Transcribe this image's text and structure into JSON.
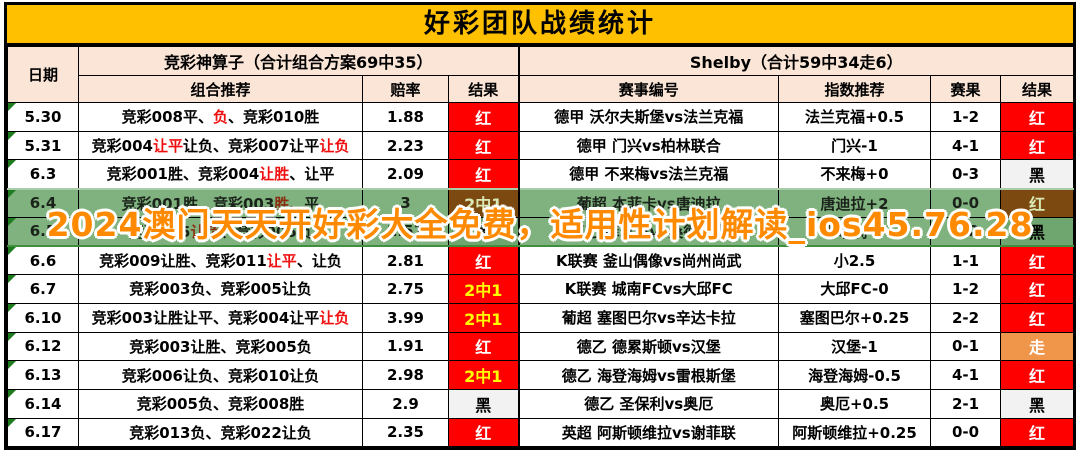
{
  "title": "好彩团队战绩统计",
  "watermark": "2024澳门天天开好彩大全免费，适用性计划解读_ios45.76.28",
  "colors": {
    "gold": "#FFC000",
    "header-bg": "#FBE5D6",
    "red": "#FE0000",
    "hit-text": "#FFFF00",
    "black-bg": "#F2F2F2",
    "walk": "#F0964B",
    "hl-green": "#7FB27E",
    "hl-brown": "#7C4A10",
    "watermark": "#FF8A00",
    "seg-red": "#F01010",
    "triangle": "#1E7B1E"
  },
  "table": {
    "date_header": "日期",
    "group_left": "竞彩神算子（合计组合方案69中35）",
    "group_right": "Shelby（合计59中34走6）",
    "columns_left": [
      "组合推荐",
      "赔率",
      "结果"
    ],
    "columns_right": [
      "赛事编号",
      "指数推荐",
      "赛果",
      "结果"
    ],
    "rows": [
      {
        "date": "5.30",
        "combo": [
          {
            "text": "竞彩008平、",
            "red": false
          },
          {
            "text": "负",
            "red": true
          },
          {
            "text": "、竞彩010胜",
            "red": false
          }
        ],
        "odds": "1.88",
        "result_left": {
          "text": "红",
          "style": "red"
        },
        "match": "德甲 沃尔夫斯堡vs法兰克福",
        "index_pick": "法兰克福+0.5",
        "score": "1-2",
        "result_right": {
          "text": "红",
          "style": "red"
        },
        "highlight": false
      },
      {
        "date": "5.31",
        "combo": [
          {
            "text": "竞彩004",
            "red": false
          },
          {
            "text": "让平",
            "red": true
          },
          {
            "text": "让负、竞彩007让平",
            "red": false
          },
          {
            "text": "让负",
            "red": true
          }
        ],
        "odds": "2.23",
        "result_left": {
          "text": "红",
          "style": "red"
        },
        "match": "德甲 门兴vs柏林联合",
        "index_pick": "门兴-1",
        "score": "4-1",
        "result_right": {
          "text": "红",
          "style": "red"
        },
        "highlight": false
      },
      {
        "date": "6.3",
        "combo": [
          {
            "text": "竞彩001胜、竞彩004",
            "red": false
          },
          {
            "text": "让胜",
            "red": true
          },
          {
            "text": "、让平",
            "red": false
          }
        ],
        "odds": "2.09",
        "result_left": {
          "text": "红",
          "style": "red"
        },
        "match": "德甲 不来梅vs法兰克福",
        "index_pick": "不来梅+0",
        "score": "0-3",
        "result_right": {
          "text": "黑",
          "style": "black"
        },
        "highlight": false
      },
      {
        "date": "6.4",
        "combo": [
          {
            "text": "竞彩001胜、竞彩003",
            "red": false
          },
          {
            "text": "胜",
            "red": true
          },
          {
            "text": "、平",
            "red": false
          }
        ],
        "odds": "3",
        "result_left": {
          "text": "2中1",
          "style": "hit"
        },
        "match": "葡超 本菲卡vs唐迪拉",
        "index_pick": "唐迪拉+2",
        "score": "0-0",
        "result_right": {
          "text": "红",
          "style": "red"
        },
        "highlight": true
      },
      {
        "date": "6.5",
        "combo": [
          {
            "text": "竞彩005",
            "red": false
          },
          {
            "text": "让负",
            "red": true
          },
          {
            "text": "、竞彩005负",
            "red": false
          }
        ],
        "odds": "2.51",
        "result_left": {
          "text": "黑",
          "style": "black"
        },
        "match": "德乙 菲尔特vs桑德豪森",
        "index_pick": "菲尔特-0",
        "score": "1-2",
        "result_right": {
          "text": "黑",
          "style": "black"
        },
        "highlight": true
      },
      {
        "date": "6.6",
        "combo": [
          {
            "text": "竞彩009让胜、竞彩011",
            "red": false
          },
          {
            "text": "让平",
            "red": true
          },
          {
            "text": "、让负",
            "red": false
          }
        ],
        "odds": "2.81",
        "result_left": {
          "text": "红",
          "style": "red"
        },
        "match": "K联赛 釜山偶像vs尚州尚武",
        "index_pick": "小2.5",
        "score": "1-1",
        "result_right": {
          "text": "红",
          "style": "red"
        },
        "highlight": false
      },
      {
        "date": "6.7",
        "combo": [
          {
            "text": "竞彩003负、竞彩005让负",
            "red": false
          }
        ],
        "odds": "2.75",
        "result_left": {
          "text": "2中1",
          "style": "hit"
        },
        "match": "K联赛 城南FCvs大邱FC",
        "index_pick": "大邱FC-0",
        "score": "1-2",
        "result_right": {
          "text": "红",
          "style": "red"
        },
        "highlight": false
      },
      {
        "date": "6.10",
        "combo": [
          {
            "text": "竞彩003让胜让平、竞彩004让平",
            "red": false
          },
          {
            "text": "让负",
            "red": true
          }
        ],
        "odds": "3.99",
        "result_left": {
          "text": "2中1",
          "style": "hit"
        },
        "match": "葡超 塞图巴尔vs辛达卡拉",
        "index_pick": "塞图巴尔+0.25",
        "score": "2-2",
        "result_right": {
          "text": "红",
          "style": "red"
        },
        "highlight": false
      },
      {
        "date": "6.12",
        "combo": [
          {
            "text": "竞彩003让胜、竞彩005负",
            "red": false
          }
        ],
        "odds": "1.91",
        "result_left": {
          "text": "红",
          "style": "red"
        },
        "match": "德乙 德累斯顿vs汉堡",
        "index_pick": "汉堡-1",
        "score": "0-1",
        "result_right": {
          "text": "走",
          "style": "walk"
        },
        "highlight": false
      },
      {
        "date": "6.13",
        "combo": [
          {
            "text": "竞彩006让负、竞彩010让负",
            "red": false
          }
        ],
        "odds": "2.98",
        "result_left": {
          "text": "2中1",
          "style": "hit"
        },
        "match": "德乙 海登海姆vs雷根斯堡",
        "index_pick": "海登海姆-0.5",
        "score": "4-1",
        "result_right": {
          "text": "红",
          "style": "red"
        },
        "highlight": false
      },
      {
        "date": "6.14",
        "combo": [
          {
            "text": "竞彩005负、竞彩008胜",
            "red": false
          }
        ],
        "odds": "2.9",
        "result_left": {
          "text": "黑",
          "style": "black"
        },
        "match": "德乙 圣保利vs奥厄",
        "index_pick": "奥厄+0.5",
        "score": "2-1",
        "result_right": {
          "text": "黑",
          "style": "black"
        },
        "highlight": false
      },
      {
        "date": "6.17",
        "combo": [
          {
            "text": "竞彩013负、竞彩022让负",
            "red": false
          }
        ],
        "odds": "2.35",
        "result_left": {
          "text": "红",
          "style": "red"
        },
        "match": "英超 阿斯顿维拉vs谢菲联",
        "index_pick": "阿斯顿维拉+0.25",
        "score": "0-0",
        "result_right": {
          "text": "红",
          "style": "red"
        },
        "highlight": false
      }
    ]
  }
}
